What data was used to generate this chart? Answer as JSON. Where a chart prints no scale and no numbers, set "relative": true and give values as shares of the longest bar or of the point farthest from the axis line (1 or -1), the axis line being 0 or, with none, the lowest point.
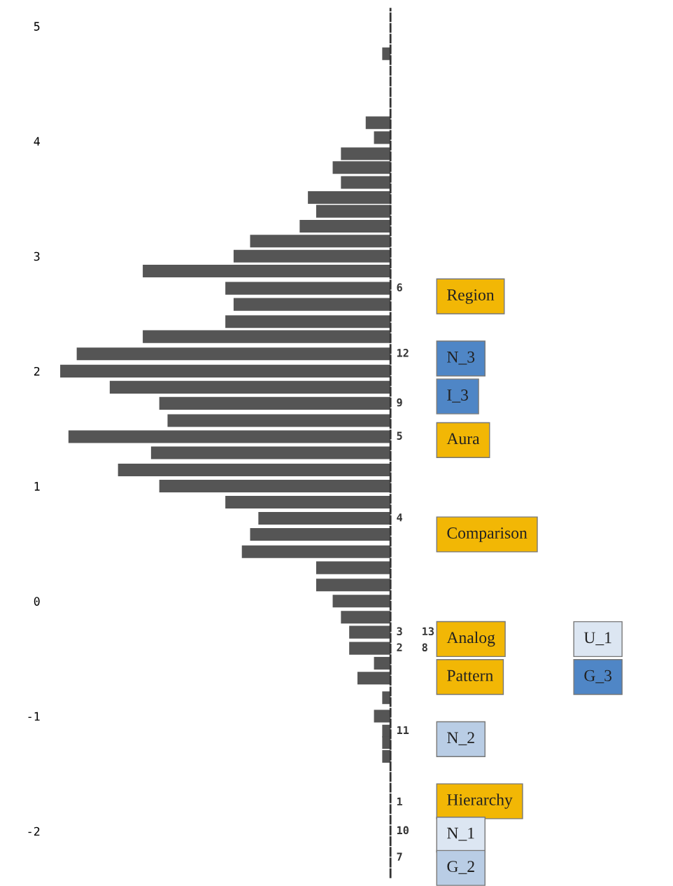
{
  "chart_data": {
    "type": "bar",
    "orientation": "horizontal",
    "relative": true,
    "x": [
      4.76,
      4.16,
      4.03,
      3.89,
      3.77,
      3.64,
      3.51,
      3.39,
      3.26,
      3.13,
      3.0,
      2.87,
      2.72,
      2.58,
      2.43,
      2.3,
      2.15,
      2.0,
      1.86,
      1.72,
      1.57,
      1.43,
      1.29,
      1.14,
      1.0,
      0.86,
      0.72,
      0.58,
      0.43,
      0.29,
      0.14,
      0.0,
      -0.14,
      -0.27,
      -0.41,
      -0.54,
      -0.67,
      -0.84,
      -1.0,
      -1.13,
      -1.23,
      -1.35
    ],
    "series": [
      {
        "color": "#555555",
        "values": [
          0.025,
          0.075,
          0.05,
          0.15,
          0.175,
          0.15,
          0.25,
          0.225,
          0.275,
          0.425,
          0.475,
          0.75,
          0.5,
          0.475,
          0.5,
          0.75,
          0.95,
          1,
          0.85,
          0.7,
          0.675,
          0.975,
          0.725,
          0.825,
          0.7,
          0.5,
          0.4,
          0.425,
          0.45,
          0.225,
          0.225,
          0.175,
          0.15,
          0.125,
          0.125,
          0.05,
          0.1,
          0.025,
          0.05,
          0.025,
          0.025,
          0.025
        ]
      }
    ],
    "ylim": [
      -2.4,
      5.15
    ],
    "yticks": [
      5,
      4,
      3,
      2,
      1,
      0,
      -1,
      -2
    ],
    "grid": false,
    "legend": false,
    "annotations": [
      "6",
      "12",
      "9",
      "5",
      "4",
      "3",
      "13",
      "2",
      "8",
      "11",
      "1",
      "10",
      "7",
      "Region",
      "N_3",
      "I_3",
      "Aura",
      "Comparison",
      "Analog",
      "U_1",
      "Pattern",
      "G_3",
      "N_2",
      "Hierarchy",
      "N_1",
      "G_2"
    ]
  }
}
